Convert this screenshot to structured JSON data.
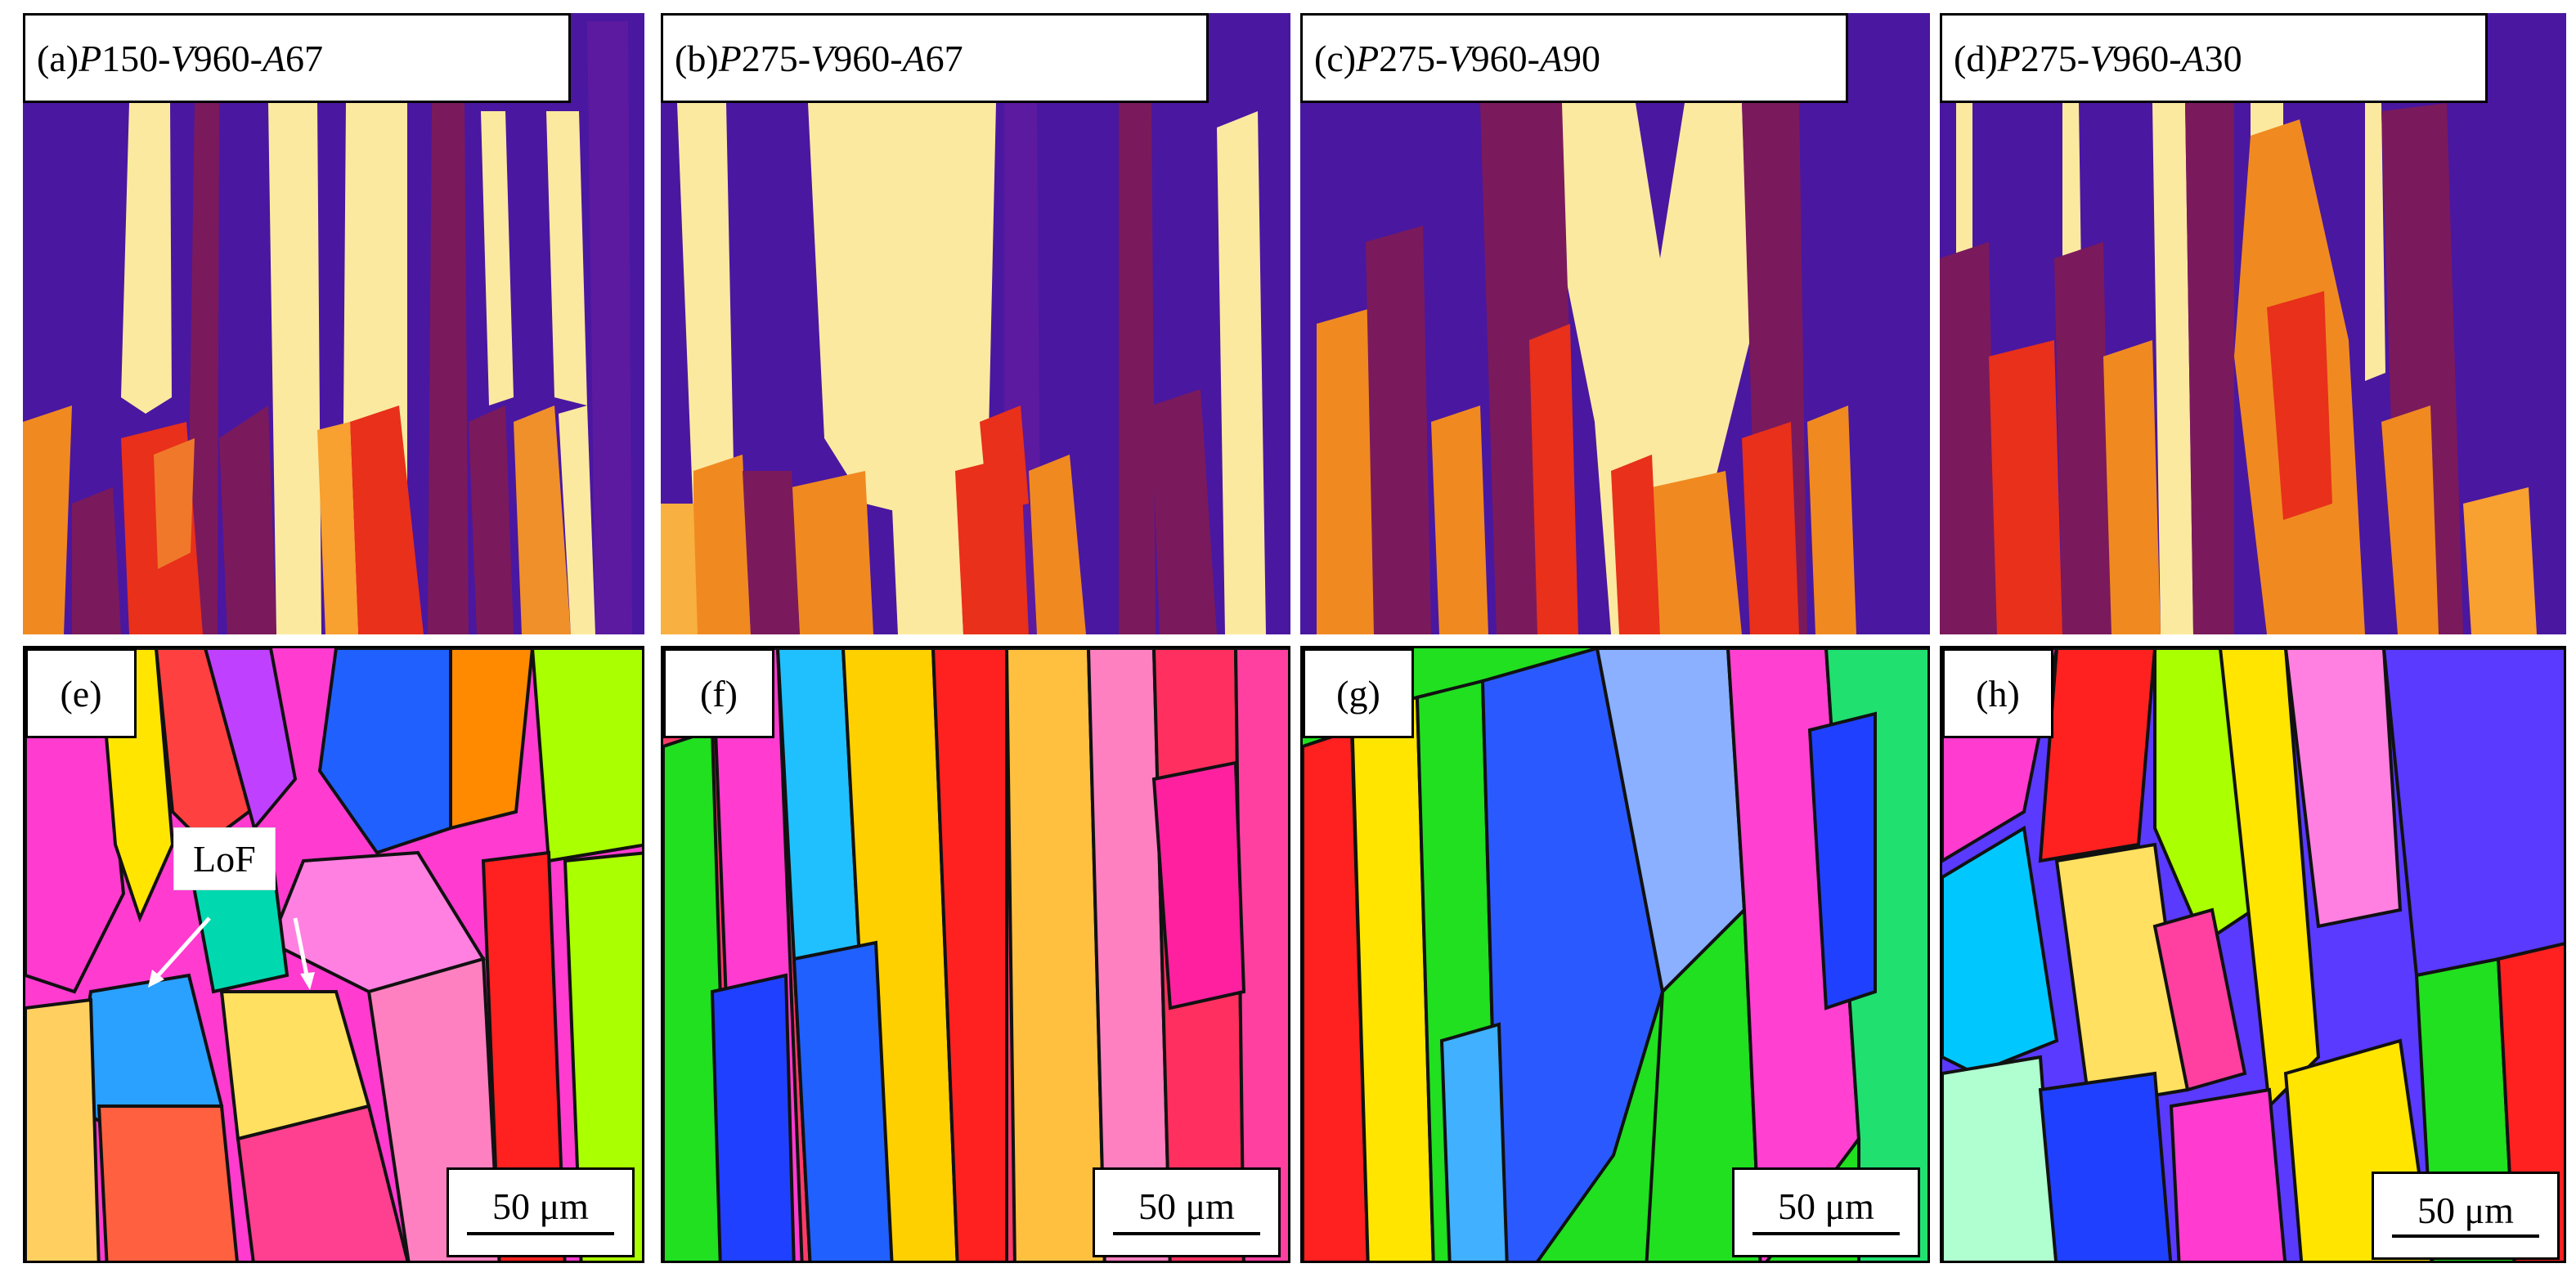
{
  "panels_top": [
    {
      "letter": "(a) ",
      "p": "P",
      "p_val": "150-",
      "v": "V",
      "v_val": "960-",
      "a": "A",
      "a_val": "67"
    },
    {
      "letter": "(b) ",
      "p": "P",
      "p_val": "275-",
      "v": "V",
      "v_val": "960-",
      "a": "A",
      "a_val": "67"
    },
    {
      "letter": "(c) ",
      "p": "P",
      "p_val": "275-",
      "v": "V",
      "v_val": "960-",
      "a": "A",
      "a_val": "90"
    },
    {
      "letter": "(d) ",
      "p": "P",
      "p_val": "275-",
      "v": "V",
      "v_val": "960-",
      "a": "A",
      "a_val": "30"
    }
  ],
  "panels_bottom": [
    {
      "letter": "(e)",
      "scale": "50 μm"
    },
    {
      "letter": "(f)",
      "scale": "50 μm"
    },
    {
      "letter": "(g)",
      "scale": "50 μm"
    },
    {
      "letter": "(h)",
      "scale": "50 μm"
    }
  ],
  "annotation": {
    "lof": "LoF"
  },
  "colors": {
    "purple": "#4a17a0",
    "maroon": "#7a1a5c",
    "pale_yellow": "#fbe9a0",
    "orange": "#f08a20",
    "red": "#e8301a"
  }
}
